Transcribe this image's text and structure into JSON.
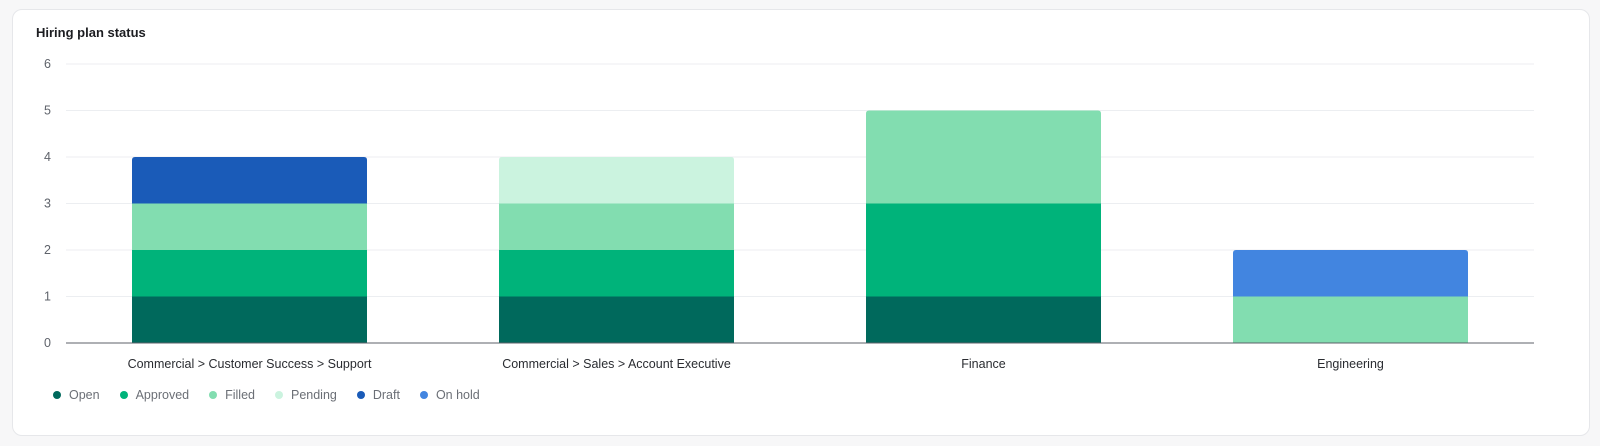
{
  "card": {
    "title": "Hiring plan status"
  },
  "chart_data": {
    "type": "bar",
    "stacked": true,
    "title": "Hiring plan status",
    "categories": [
      "Commercial > Customer Success > Support",
      "Commercial > Sales > Account Executive",
      "Finance",
      "Engineering"
    ],
    "series": [
      {
        "name": "Open",
        "color": "#00695c",
        "values": [
          1,
          1,
          1,
          0
        ]
      },
      {
        "name": "Approved",
        "color": "#00b37a",
        "values": [
          1,
          1,
          2,
          0
        ]
      },
      {
        "name": "Filled",
        "color": "#82ddb0",
        "values": [
          1,
          1,
          2,
          1
        ]
      },
      {
        "name": "Pending",
        "color": "#cbf3df",
        "values": [
          0,
          1,
          0,
          0
        ]
      },
      {
        "name": "Draft",
        "color": "#1a5bb8",
        "values": [
          1,
          0,
          0,
          0
        ]
      },
      {
        "name": "On hold",
        "color": "#4285e0",
        "values": [
          0,
          0,
          0,
          1
        ]
      }
    ],
    "yticks": [
      0,
      1,
      2,
      3,
      4,
      5,
      6
    ],
    "ylim": [
      0,
      6
    ],
    "grid": true,
    "legend": "bottom-left",
    "xlabel": "",
    "ylabel": ""
  }
}
